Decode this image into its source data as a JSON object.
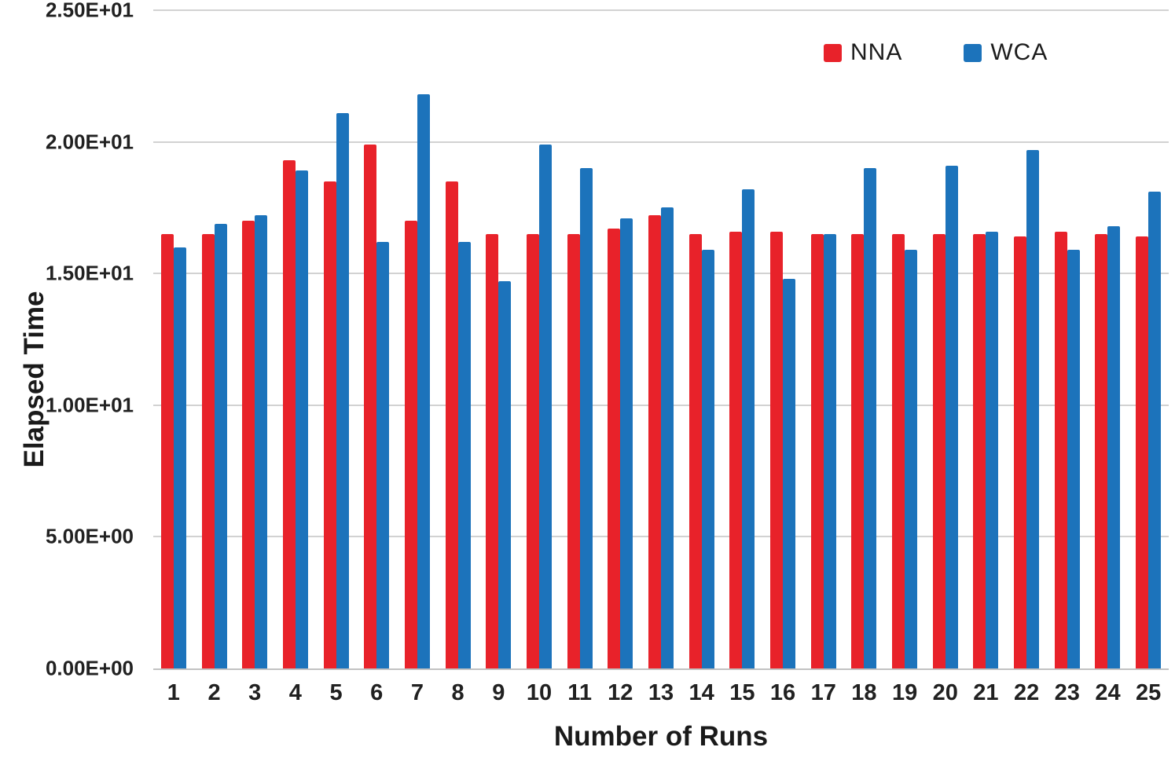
{
  "chart_data": {
    "type": "bar",
    "title": "",
    "xlabel": "Number of Runs",
    "ylabel": "Elapsed Time",
    "categories": [
      "1",
      "2",
      "3",
      "4",
      "5",
      "6",
      "7",
      "8",
      "9",
      "10",
      "11",
      "12",
      "13",
      "14",
      "15",
      "16",
      "17",
      "18",
      "19",
      "20",
      "21",
      "22",
      "23",
      "24",
      "25"
    ],
    "series": [
      {
        "name": "NNA",
        "color": "#E8222A",
        "values": [
          16.5,
          16.5,
          17.0,
          19.3,
          18.5,
          19.9,
          17.0,
          18.5,
          16.5,
          16.5,
          16.5,
          16.7,
          17.2,
          16.5,
          16.6,
          16.6,
          16.5,
          16.5,
          16.5,
          16.5,
          16.5,
          16.4,
          16.6,
          16.5,
          16.4
        ]
      },
      {
        "name": "WCA",
        "color": "#1C73BB",
        "values": [
          16.0,
          16.9,
          17.2,
          18.9,
          21.1,
          16.2,
          21.8,
          16.2,
          14.7,
          19.9,
          19.0,
          17.1,
          17.5,
          15.9,
          18.2,
          14.8,
          16.5,
          19.0,
          15.9,
          19.1,
          16.6,
          19.7,
          15.9,
          16.8,
          18.1
        ]
      }
    ],
    "ylim": [
      0,
      25
    ],
    "yticks": [
      {
        "value": 0,
        "label": "0.00E+00"
      },
      {
        "value": 5,
        "label": "5.00E+00"
      },
      {
        "value": 10,
        "label": "1.00E+01"
      },
      {
        "value": 15,
        "label": "1.50E+01"
      },
      {
        "value": 20,
        "label": "2.00E+01"
      },
      {
        "value": 25,
        "label": "2.50E+01"
      }
    ],
    "grid": true,
    "legend_position": "top-right"
  }
}
